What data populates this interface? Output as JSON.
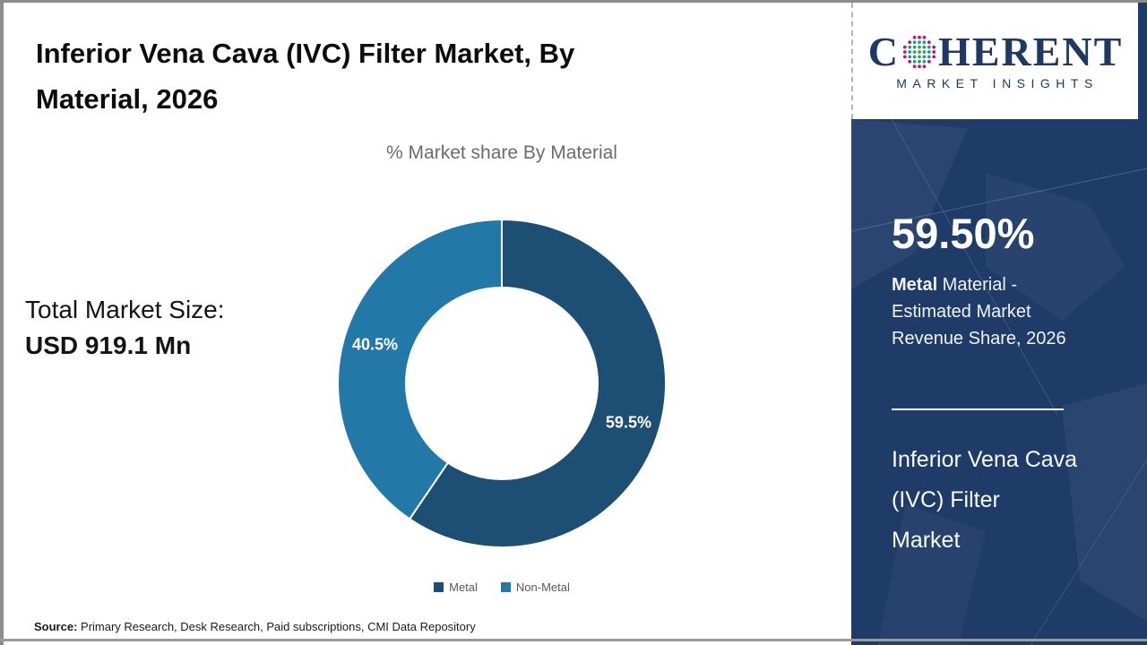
{
  "header": {
    "title_lines": [
      "Inferior Vena Cava (IVC) Filter Market, By",
      "Material, 2026"
    ]
  },
  "logo": {
    "brand_c": "C",
    "brand_rest": "HERENT",
    "subtitle": "MARKET INSIGHTS",
    "brand_color": "#1f3864"
  },
  "left_panel": {
    "total_label": "Total Market Size:",
    "total_value": "USD 919.1 Mn"
  },
  "chart_data": {
    "type": "donut",
    "title": "% Market share By Material",
    "categories": [
      "Metal",
      "Non-Metal"
    ],
    "values": [
      59.5,
      40.5
    ],
    "labels": [
      "59.5%",
      "40.5%"
    ],
    "colors": [
      "#1d4e74",
      "#2279a7"
    ],
    "start_angle_deg": -90,
    "direction": "clockwise",
    "legend_position": "bottom"
  },
  "sidebar": {
    "background": "#1f3c69",
    "stat_value": "59.50%",
    "stat_desc_bold": "Metal",
    "stat_desc_rest": " Material -",
    "stat_desc_line2": "Estimated Market",
    "stat_desc_line3": "Revenue Share, 2026",
    "market_name_lines": [
      "Inferior Vena Cava",
      "(IVC) Filter",
      "Market"
    ]
  },
  "footer": {
    "source_label": "Source:",
    "source_text": " Primary Research, Desk Research, Paid subscriptions, CMI Data Repository"
  }
}
